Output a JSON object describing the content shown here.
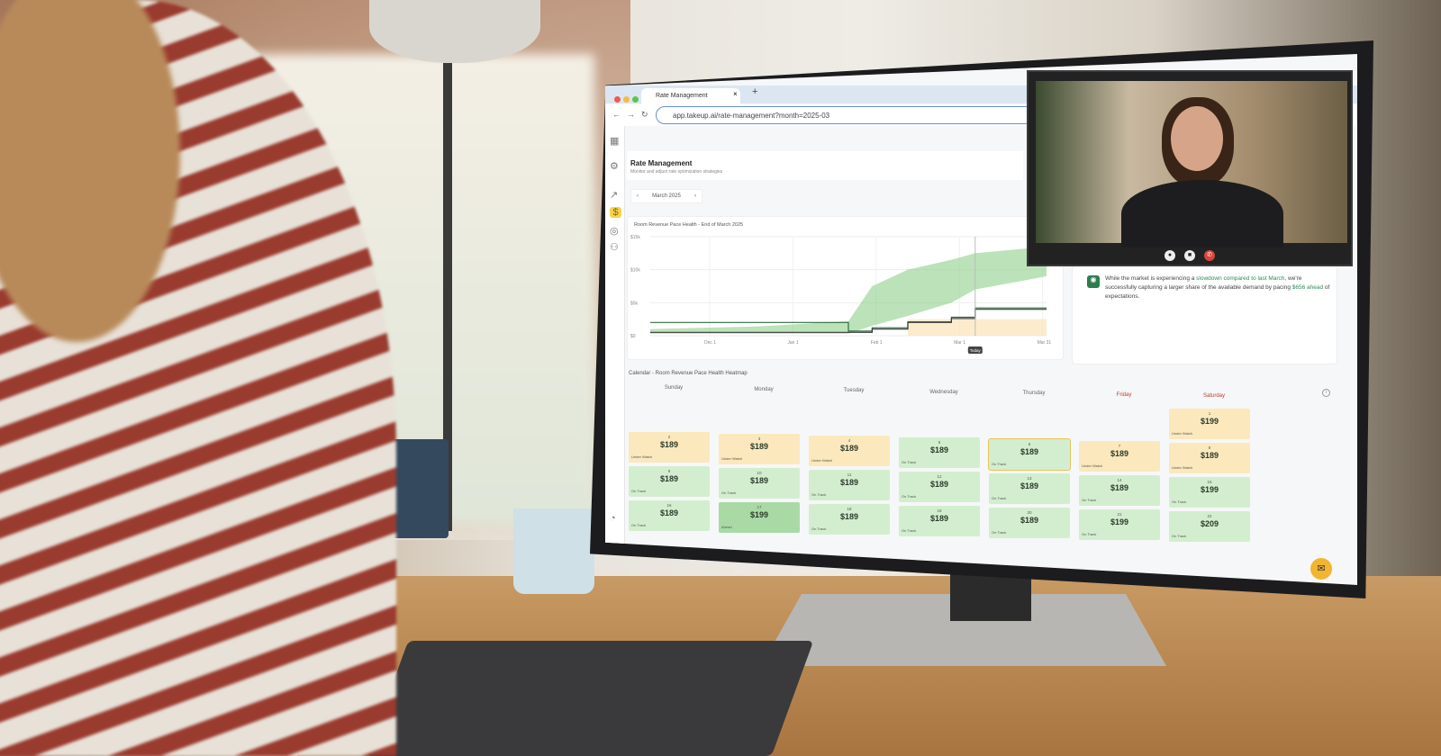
{
  "browser": {
    "tab_title": "Rate Management",
    "close": "×",
    "new_tab": "+",
    "url": "app.takeup.ai/rate-management?month=2025-03",
    "back": "←",
    "forward": "→",
    "reload": "↻"
  },
  "page": {
    "title": "Rate Management",
    "subtitle": "Monitor and adjust rate optimization strategies",
    "month": "March 2025",
    "prev": "‹",
    "next": "›"
  },
  "chart_data": {
    "type": "area",
    "title": "Room Revenue Pace Health - End of March 2025",
    "yticks": [
      "$15k",
      "$10k",
      "$5k",
      "$0"
    ],
    "ylim": [
      0,
      15000
    ],
    "xticks": [
      "Dec 1",
      "Jan 1",
      "Feb 1",
      "Mar 1",
      "Mar 31"
    ],
    "today_label": "Today",
    "x": [
      "Nov 1",
      "Dec 15",
      "Jan 31",
      "Feb 10",
      "Feb 20",
      "Mar 1",
      "Mar 5",
      "Mar 31"
    ],
    "series": [
      {
        "values": [
          2000,
          2000,
          700,
          1200,
          2100,
          2800,
          4200,
          4200
        ]
      },
      {
        "values": [
          500,
          500,
          500,
          1000,
          2000,
          2600,
          4000,
          4000
        ]
      }
    ],
    "band_upper": [
      1000,
      1400,
      2200,
      7500,
      10000,
      11500,
      12500,
      13500
    ],
    "band_lower": [
      300,
      300,
      300,
      1500,
      3000,
      5000,
      7000,
      9000
    ]
  },
  "insight": {
    "pre": "While the market is experiencing a ",
    "hl1": "slowdown compared to last March",
    "mid": ", we're successfully capturing a larger share of the available demand by pacing ",
    "hl2": "$656 ahead",
    "post": " of expectations."
  },
  "calendar": {
    "title": "Calendar - Room Revenue Pace Health Heatmap",
    "info": "i",
    "weekdays": [
      "Sunday",
      "Monday",
      "Tuesday",
      "Wednesday",
      "Thursday",
      "Friday",
      "Saturday"
    ],
    "days": [
      {
        "d": "1",
        "p": "$199",
        "s": "Under Watch",
        "c": "uw"
      },
      {
        "d": "2",
        "p": "$189",
        "s": "Under Watch",
        "c": "uw"
      },
      {
        "d": "3",
        "p": "$189",
        "s": "Under Watch",
        "c": "uw"
      },
      {
        "d": "4",
        "p": "$189",
        "s": "Under Watch",
        "c": "uw"
      },
      {
        "d": "5",
        "p": "$189",
        "s": "On Track",
        "c": "ot"
      },
      {
        "d": "6",
        "p": "$189",
        "s": "On Track",
        "c": "ot",
        "today": true
      },
      {
        "d": "7",
        "p": "$189",
        "s": "Under Watch",
        "c": "uw"
      },
      {
        "d": "8",
        "p": "$189",
        "s": "Under Watch",
        "c": "uw"
      },
      {
        "d": "9",
        "p": "$189",
        "s": "On Track",
        "c": "ot"
      },
      {
        "d": "10",
        "p": "$189",
        "s": "On Track",
        "c": "ot"
      },
      {
        "d": "11",
        "p": "$189",
        "s": "On Track",
        "c": "ot"
      },
      {
        "d": "12",
        "p": "$189",
        "s": "On Track",
        "c": "ot"
      },
      {
        "d": "13",
        "p": "$189",
        "s": "On Track",
        "c": "ot"
      },
      {
        "d": "14",
        "p": "$189",
        "s": "On Track",
        "c": "ot"
      },
      {
        "d": "15",
        "p": "$199",
        "s": "On Track",
        "c": "ot"
      },
      {
        "d": "16",
        "p": "$189",
        "s": "On Track",
        "c": "ot"
      },
      {
        "d": "17",
        "p": "$199",
        "s": "Ahead",
        "c": "ah"
      },
      {
        "d": "18",
        "p": "$189",
        "s": "On Track",
        "c": "ot"
      },
      {
        "d": "19",
        "p": "$189",
        "s": "On Track",
        "c": "ot"
      },
      {
        "d": "20",
        "p": "$189",
        "s": "On Track",
        "c": "ot"
      },
      {
        "d": "21",
        "p": "$199",
        "s": "On Track",
        "c": "ot"
      },
      {
        "d": "22",
        "p": "$209",
        "s": "On Track",
        "c": "ot"
      }
    ]
  },
  "colors": {
    "under_watch": "#fbe9bd",
    "on_track": "#d3eecf",
    "ahead": "#a9daa5",
    "accent": "#2e7d4f"
  }
}
